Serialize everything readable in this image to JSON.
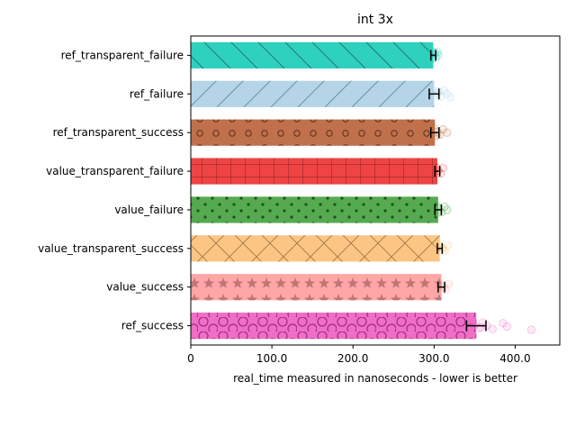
{
  "chart_data": {
    "type": "bar",
    "orientation": "horizontal",
    "title": "int 3x",
    "xlabel": "real_time measured in nanoseconds - lower is better",
    "ylabel": "",
    "xlim": [
      0,
      455
    ],
    "xticks": [
      0,
      100,
      200,
      300,
      400
    ],
    "xtick_labels": [
      "0",
      "100.0",
      "200.0",
      "300.0",
      "400.0"
    ],
    "grid": false,
    "legend": "none",
    "bars": [
      {
        "name": "ref_transparent_failure",
        "value": 299,
        "err": 3,
        "color": "#2ed1bd",
        "hatch": "diag-back",
        "jitter": [
          297,
          300,
          302,
          304,
          305,
          298,
          301
        ]
      },
      {
        "name": "ref_failure",
        "value": 300,
        "err": 6,
        "color": "#b5d4e8",
        "hatch": "diag-fwd",
        "jitter": [
          299,
          304,
          308,
          312,
          316,
          320,
          306,
          302
        ]
      },
      {
        "name": "ref_transparent_success",
        "value": 301,
        "err": 5,
        "color": "#c0704a",
        "hatch": "circles-small",
        "jitter": [
          300,
          304,
          307,
          311,
          316,
          303
        ]
      },
      {
        "name": "value_transparent_failure",
        "value": 304,
        "err": 3,
        "color": "#ee4444",
        "hatch": "grid",
        "jitter": [
          302,
          305,
          308,
          311,
          303
        ]
      },
      {
        "name": "value_failure",
        "value": 305,
        "err": 4,
        "color": "#55aa4f",
        "hatch": "dots",
        "jitter": [
          303,
          306,
          309,
          313,
          316,
          304
        ]
      },
      {
        "name": "value_transparent_success",
        "value": 307,
        "err": 3,
        "color": "#fdc583",
        "hatch": "cross",
        "jitter": [
          305,
          309,
          313,
          317,
          311
        ]
      },
      {
        "name": "value_success",
        "value": 309,
        "err": 4,
        "color": "#ffa6a6",
        "hatch": "stars",
        "jitter": [
          306,
          310,
          314,
          318,
          312
        ]
      },
      {
        "name": "ref_success",
        "value": 352,
        "err": 12,
        "color": "#f06ec6",
        "hatch": "circles-large",
        "jitter": [
          345,
          350,
          355,
          360,
          365,
          372,
          385,
          390,
          420,
          348,
          358
        ]
      }
    ]
  }
}
